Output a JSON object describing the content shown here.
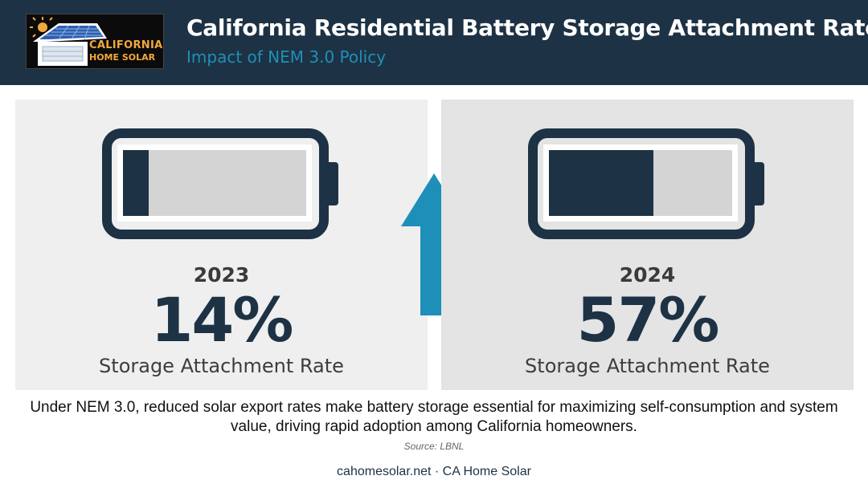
{
  "header": {
    "logo": {
      "line1": "CALIFORNIA",
      "line2": "HOME SOLAR"
    },
    "title": "California Residential Battery Storage Attachment Rates",
    "subtitle": "Impact of NEM 3.0 Policy"
  },
  "comparison": [
    {
      "year": "2023",
      "rate_text": "14%",
      "rate_fraction": 0.14,
      "label": "Storage Attachment Rate"
    },
    {
      "year": "2024",
      "rate_text": "57%",
      "rate_fraction": 0.57,
      "label": "Storage Attachment Rate"
    }
  ],
  "trend_icon": "up-arrow-icon",
  "description": "Under NEM 3.0, reduced solar export rates make battery storage essential for maximizing self-consumption and system value, driving rapid adoption among California homeowners.",
  "source": "Source: LBNL",
  "footer": "cahomesolar.net · CA Home Solar",
  "colors": {
    "navy": "#1d3244",
    "accent_blue": "#1e8fb8",
    "logo_orange": "#f2a93b",
    "battery_empty": "#d4d4d4"
  }
}
